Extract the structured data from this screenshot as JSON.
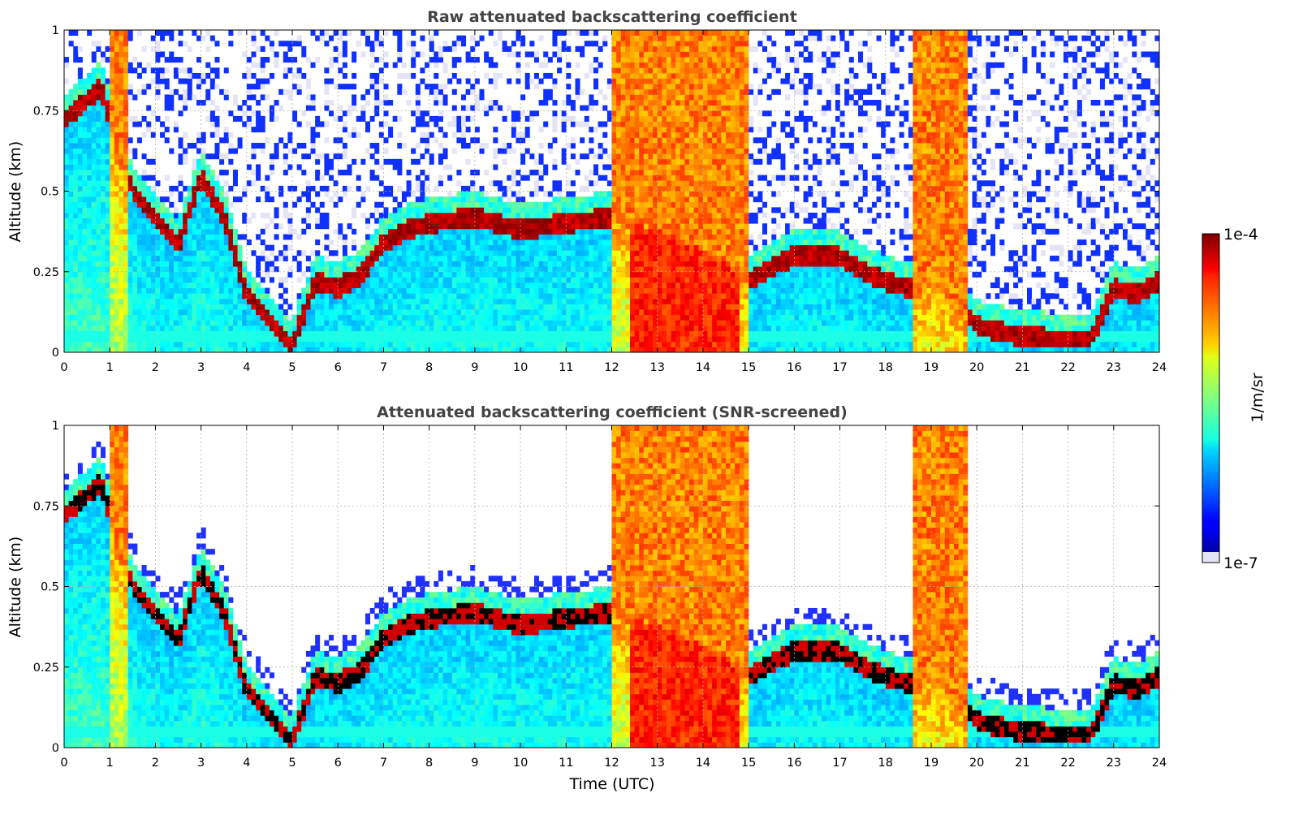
{
  "figure": {
    "colorbar": {
      "label": "1/m/sr",
      "max_label": "1e-4",
      "min_label": "1e-7",
      "scale": "log",
      "colormap": "jet",
      "low_end_color": "#e4e4f6"
    }
  },
  "chart_data": [
    {
      "type": "heatmap",
      "title": "Raw attenuated backscattering coefficient",
      "xlabel": "",
      "ylabel": "Altitude (km)",
      "xlim": [
        0,
        24
      ],
      "ylim": [
        0,
        1
      ],
      "x_ticks": [
        "0",
        "1",
        "2",
        "3",
        "4",
        "5",
        "6",
        "7",
        "8",
        "9",
        "10",
        "11",
        "12",
        "13",
        "14",
        "15",
        "16",
        "17",
        "18",
        "19",
        "20",
        "21",
        "22",
        "23",
        "24"
      ],
      "y_ticks": [
        "0",
        "0.25",
        "0.5",
        "0.75",
        "1"
      ],
      "grid": true,
      "screened": false,
      "layer_top_km": [
        [
          0,
          0.72
        ],
        [
          0.8,
          0.82
        ],
        [
          1.5,
          0.5
        ],
        [
          2,
          0.42
        ],
        [
          2.5,
          0.33
        ],
        [
          3,
          0.55
        ],
        [
          3.5,
          0.42
        ],
        [
          4,
          0.18
        ],
        [
          4.5,
          0.1
        ],
        [
          5,
          0.02
        ],
        [
          5.5,
          0.22
        ],
        [
          6,
          0.2
        ],
        [
          6.5,
          0.24
        ],
        [
          7,
          0.34
        ],
        [
          7.5,
          0.38
        ],
        [
          8,
          0.4
        ],
        [
          9,
          0.42
        ],
        [
          10,
          0.38
        ],
        [
          11,
          0.4
        ],
        [
          12,
          0.42
        ],
        [
          13,
          0.38
        ],
        [
          14,
          0.32
        ],
        [
          15,
          0.22
        ],
        [
          16,
          0.3
        ],
        [
          17,
          0.3
        ],
        [
          17.5,
          0.25
        ],
        [
          18,
          0.22
        ],
        [
          18.5,
          0.2
        ],
        [
          19,
          0.24
        ],
        [
          19.5,
          0.18
        ],
        [
          20,
          0.08
        ],
        [
          21,
          0.05
        ],
        [
          22,
          0.04
        ],
        [
          22.5,
          0.04
        ],
        [
          23,
          0.2
        ],
        [
          23.5,
          0.18
        ],
        [
          24,
          0.22
        ]
      ],
      "dense_columns_hours": [
        [
          1.0,
          1.4
        ],
        [
          12.0,
          15.0
        ],
        [
          18.6,
          19.8
        ]
      ]
    },
    {
      "type": "heatmap",
      "title": "Attenuated backscattering coefficient (SNR-screened)",
      "xlabel": "Time (UTC)",
      "ylabel": "Altitude (km)",
      "xlim": [
        0,
        24
      ],
      "ylim": [
        0,
        1
      ],
      "x_ticks": [
        "0",
        "1",
        "2",
        "3",
        "4",
        "5",
        "6",
        "7",
        "8",
        "9",
        "10",
        "11",
        "12",
        "13",
        "14",
        "15",
        "16",
        "17",
        "18",
        "19",
        "20",
        "21",
        "22",
        "23",
        "24"
      ],
      "y_ticks": [
        "0",
        "0.25",
        "0.5",
        "0.75",
        "1"
      ],
      "grid": true,
      "screened": true,
      "layer_top_km": [
        [
          0,
          0.72
        ],
        [
          0.8,
          0.82
        ],
        [
          1.5,
          0.5
        ],
        [
          2,
          0.42
        ],
        [
          2.5,
          0.33
        ],
        [
          3,
          0.55
        ],
        [
          3.5,
          0.42
        ],
        [
          4,
          0.18
        ],
        [
          4.5,
          0.1
        ],
        [
          5,
          0.02
        ],
        [
          5.5,
          0.22
        ],
        [
          6,
          0.2
        ],
        [
          6.5,
          0.24
        ],
        [
          7,
          0.34
        ],
        [
          7.5,
          0.38
        ],
        [
          8,
          0.4
        ],
        [
          9,
          0.42
        ],
        [
          10,
          0.38
        ],
        [
          11,
          0.4
        ],
        [
          12,
          0.42
        ],
        [
          13,
          0.38
        ],
        [
          14,
          0.32
        ],
        [
          15,
          0.22
        ],
        [
          16,
          0.3
        ],
        [
          17,
          0.3
        ],
        [
          17.5,
          0.25
        ],
        [
          18,
          0.22
        ],
        [
          18.5,
          0.2
        ],
        [
          19,
          0.24
        ],
        [
          19.5,
          0.18
        ],
        [
          20,
          0.08
        ],
        [
          21,
          0.05
        ],
        [
          22,
          0.04
        ],
        [
          22.5,
          0.04
        ],
        [
          23,
          0.2
        ],
        [
          23.5,
          0.18
        ],
        [
          24,
          0.22
        ]
      ],
      "dense_columns_hours": [
        [
          1.0,
          1.4
        ],
        [
          12.0,
          15.0
        ],
        [
          18.6,
          19.8
        ]
      ]
    }
  ]
}
